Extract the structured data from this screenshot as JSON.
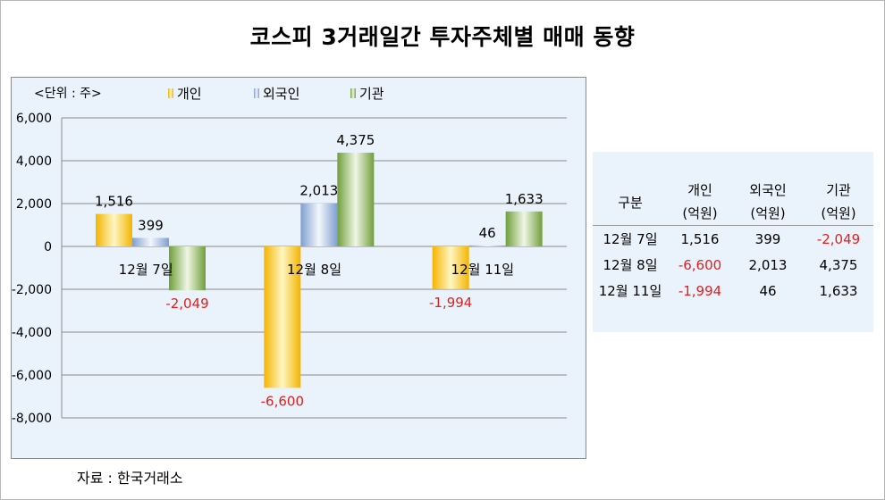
{
  "title": "코스피 3거래일간 투자주체별 매매 동향",
  "unit_label": "<단위 : 주>",
  "source": "자료 : 한국거래소",
  "colors": {
    "individual": "#f5c518",
    "foreign": "#a9c4e4",
    "institution": "#8db85a",
    "negative_label": "#e02020"
  },
  "chart_data": {
    "type": "bar",
    "categories": [
      "12월 7일",
      "12월 8일",
      "12월 11일"
    ],
    "series": [
      {
        "name": "개인",
        "values": [
          1516,
          -6600,
          -1994
        ],
        "labels": [
          "1,516",
          "-6,600",
          "-1,994"
        ]
      },
      {
        "name": "외국인",
        "values": [
          399,
          2013,
          46
        ],
        "labels": [
          "399",
          "2,013",
          "46"
        ]
      },
      {
        "name": "기관",
        "values": [
          -2049,
          4375,
          1633
        ],
        "labels": [
          "-2,049",
          "4,375",
          "1,633"
        ]
      }
    ],
    "ylim": [
      -8000,
      6000
    ],
    "yticks": [
      6000,
      4000,
      2000,
      0,
      -2000,
      -4000,
      -6000,
      -8000
    ],
    "ytick_labels": [
      "6,000",
      "4,000",
      "2,000",
      "0",
      "-2,000",
      "-4,000",
      "-6,000",
      "-8,000"
    ],
    "grid": true,
    "legend_position": "top"
  },
  "table": {
    "headers": [
      [
        "구분",
        ""
      ],
      [
        "개인",
        "(억원)"
      ],
      [
        "외국인",
        "(억원)"
      ],
      [
        "기관",
        "(억원)"
      ]
    ],
    "rows": [
      [
        "12월 7일",
        "1,516",
        "399",
        "-2,049"
      ],
      [
        "12월 8일",
        "-6,600",
        "2,013",
        "4,375"
      ],
      [
        "12월 11일",
        "-1,994",
        "46",
        "1,633"
      ]
    ]
  }
}
